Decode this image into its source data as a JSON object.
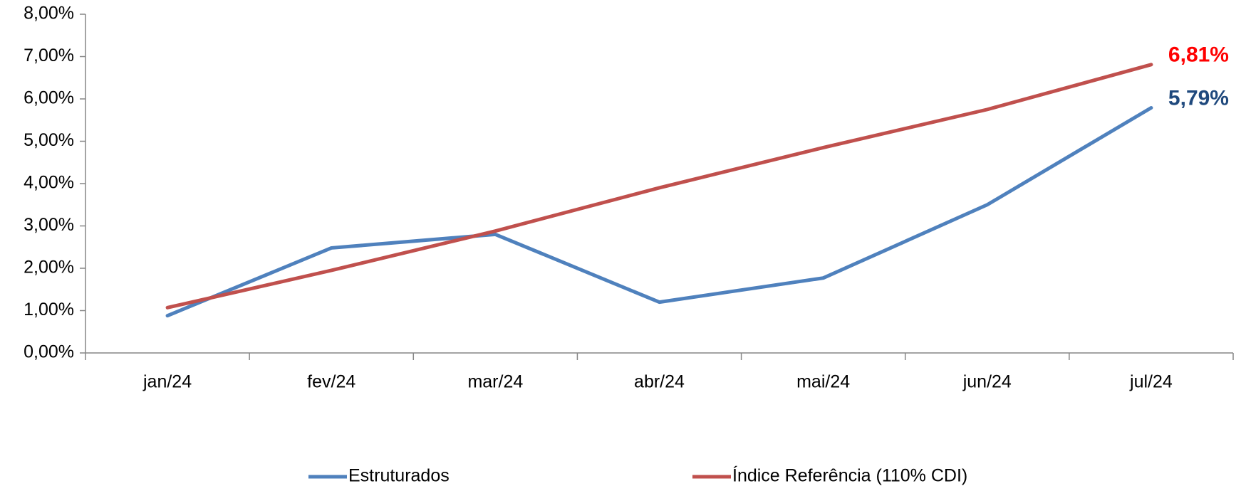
{
  "chart_data": {
    "type": "line",
    "categories": [
      "jan/24",
      "fev/24",
      "mar/24",
      "abr/24",
      "mai/24",
      "jun/24",
      "jul/24"
    ],
    "series": [
      {
        "name": "Estruturados",
        "color": "#4f81bd",
        "label_color": "#1f497d",
        "values": [
          0.88,
          2.48,
          2.8,
          1.2,
          1.77,
          3.5,
          5.79
        ],
        "value_labels": [
          null,
          null,
          null,
          null,
          null,
          null,
          "5,79%"
        ]
      },
      {
        "name": "Índice Referência (110% CDI)",
        "color": "#c0504d",
        "label_color": "#ff0000",
        "values": [
          1.07,
          1.95,
          2.88,
          3.9,
          4.85,
          5.75,
          6.81
        ],
        "value_labels": [
          null,
          null,
          null,
          null,
          null,
          null,
          "6,81%"
        ]
      }
    ],
    "ylim": [
      0,
      8
    ],
    "yticks": [
      {
        "value": 0,
        "label": "0,00%"
      },
      {
        "value": 1,
        "label": "1,00%"
      },
      {
        "value": 2,
        "label": "2,00%"
      },
      {
        "value": 3,
        "label": "3,00%"
      },
      {
        "value": 4,
        "label": "4,00%"
      },
      {
        "value": 5,
        "label": "5,00%"
      },
      {
        "value": 6,
        "label": "6,00%"
      },
      {
        "value": 7,
        "label": "7,00%"
      },
      {
        "value": 8,
        "label": "8,00%"
      }
    ],
    "grid": false,
    "legend": "bottom"
  }
}
